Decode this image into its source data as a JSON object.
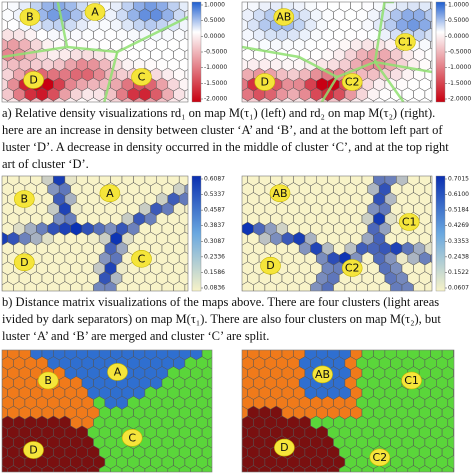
{
  "panels": [
    {
      "clusters": [
        "B",
        "A",
        "D",
        "C"
      ],
      "colorbar": [
        "1.0000",
        "0.5000",
        "0.0000",
        "-0.5000",
        "-1.0000",
        "-1.5000",
        "-2.0000"
      ]
    },
    {
      "clusters": [
        "AB",
        "C1",
        "D",
        "C2"
      ],
      "colorbar": [
        "1.0000",
        "0.5000",
        "0.0000",
        "-0.5000",
        "-1.0000",
        "-1.5000",
        "-2.0000"
      ]
    },
    {
      "clusters": [
        "B",
        "A",
        "D",
        "C"
      ],
      "colorbar": [
        "0.6087",
        "0.5337",
        "0.4587",
        "0.3837",
        "0.3087",
        "0.2336",
        "0.1586",
        "0.0836"
      ]
    },
    {
      "clusters": [
        "AB",
        "C1",
        "D",
        "C2"
      ],
      "colorbar": [
        "0.7015",
        "0.6100",
        "0.5184",
        "0.4269",
        "0.3353",
        "0.2438",
        "0.1522",
        "0.0607"
      ]
    },
    {
      "clusters": [
        "B",
        "A",
        "D",
        "C"
      ]
    },
    {
      "clusters": [
        "AB",
        "C1",
        "D",
        "C2"
      ]
    }
  ],
  "caption_a": [
    "a)  Relative density visualizations rd₁ on map M(τ₁) (left) and rd₂ on map M(τ₂) (right).",
    "here are an increase in density between cluster ‘A’ and ‘B’, and at the bottom left part of",
    "luster ‘D’. A decrease in density occurred in the middle of cluster ‘C’, and at the top right",
    "art of cluster ‘D’."
  ],
  "caption_b": [
    "b)  Distance matrix visualizations of the maps above. There are four clusters (light areas",
    "ivided by dark separators) on map M(τ₁). There are also four clusters on map M(τ₂), but",
    "luster ‘A’ and ‘B’ are merged and cluster ‘C’ are split."
  ]
}
